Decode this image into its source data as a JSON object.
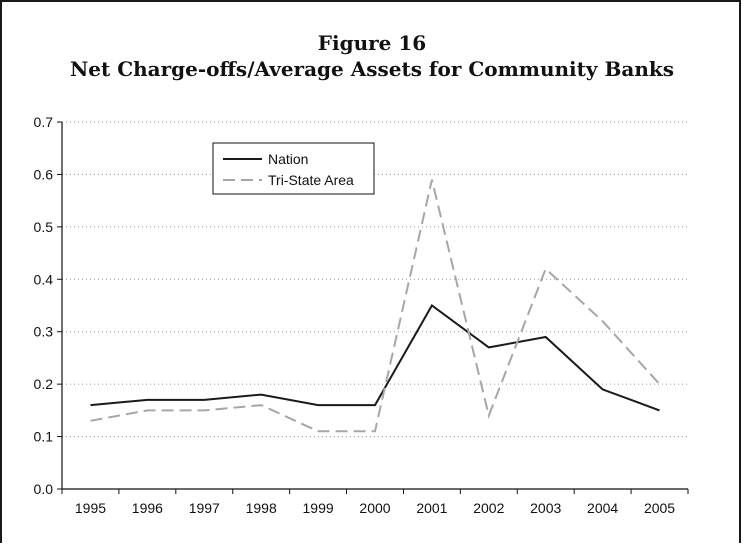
{
  "chart_data": {
    "type": "line",
    "title": "Figure 16",
    "subtitle": "Net Charge-offs/Average Assets for Community Banks",
    "x": [
      "1995",
      "1996",
      "1997",
      "1998",
      "1999",
      "2000",
      "2001",
      "2002",
      "2003",
      "2004",
      "2005"
    ],
    "series": [
      {
        "name": "Nation",
        "values": [
          0.16,
          0.17,
          0.17,
          0.18,
          0.16,
          0.16,
          0.35,
          0.27,
          0.29,
          0.19,
          0.15
        ],
        "color": "#1a1a1a",
        "dash": "solid"
      },
      {
        "name": "Tri-State Area",
        "values": [
          0.13,
          0.15,
          0.15,
          0.16,
          0.11,
          0.11,
          0.59,
          0.14,
          0.42,
          0.32,
          0.2
        ],
        "color": "#a6a6a6",
        "dash": "dashed"
      }
    ],
    "ylim": [
      0.0,
      0.7
    ],
    "yticks": [
      "0.0",
      "0.1",
      "0.2",
      "0.3",
      "0.4",
      "0.5",
      "0.6",
      "0.7"
    ],
    "grid": "horizontal-dotted",
    "legend": "top-left"
  }
}
